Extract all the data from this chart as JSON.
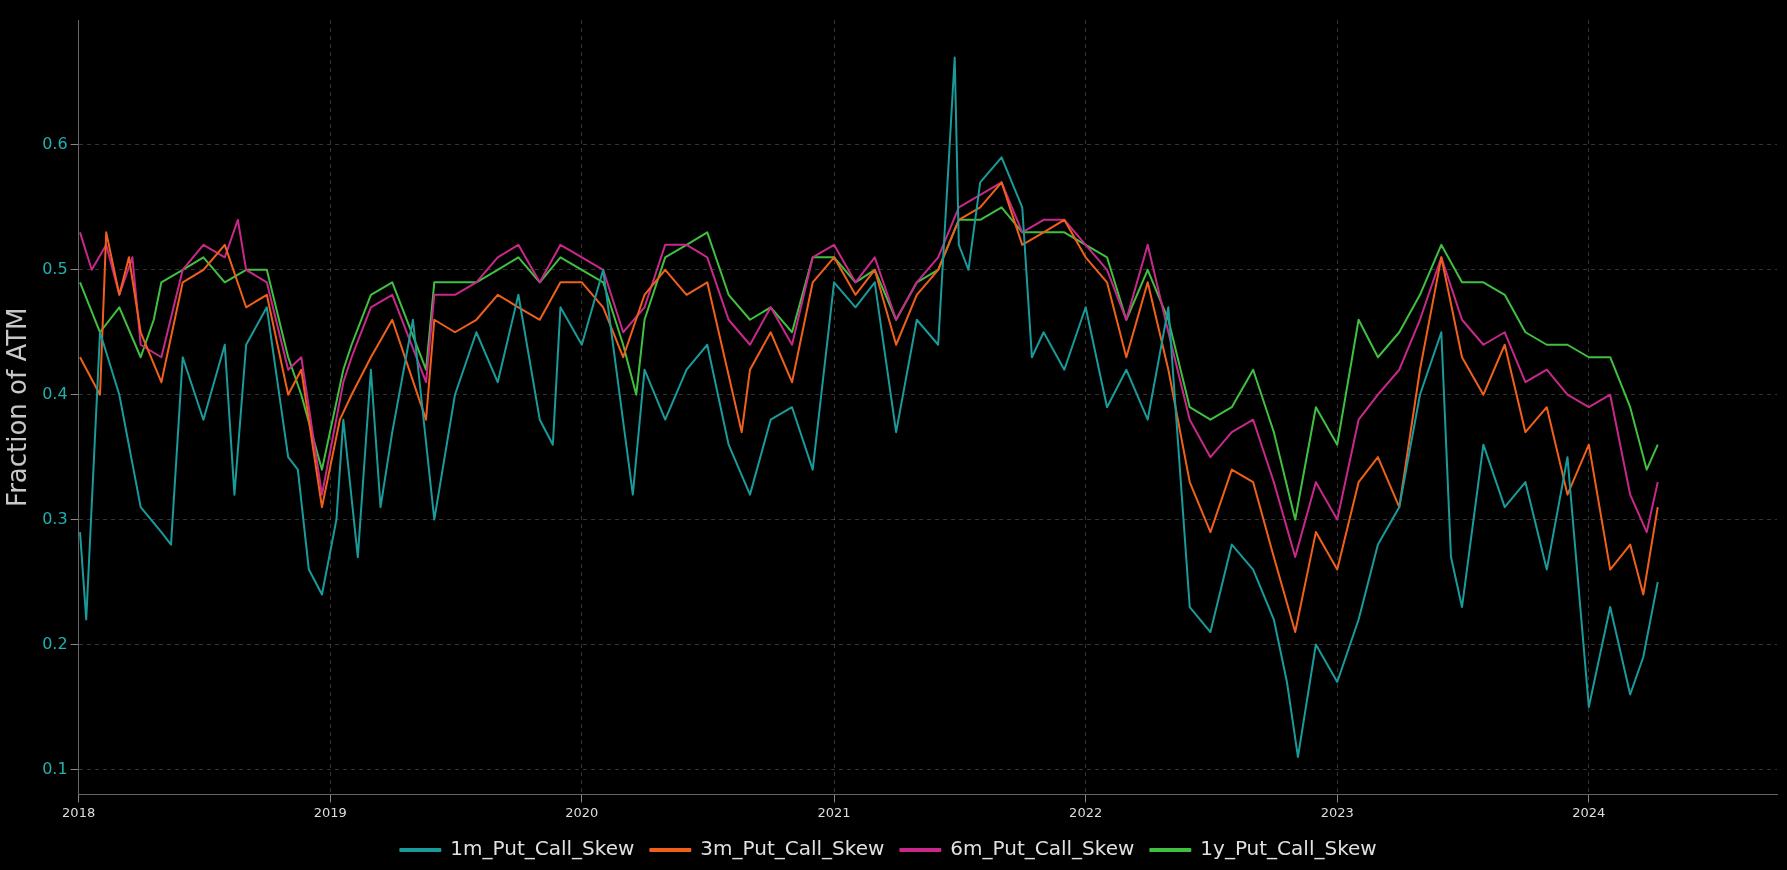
{
  "chart_data": {
    "type": "line",
    "ylabel": "Fraction of ATM",
    "xlim": [
      "2018-01-01",
      "2024-09-30"
    ],
    "xticks": [
      "2018",
      "2019",
      "2020",
      "2021",
      "2022",
      "2023",
      "2024"
    ],
    "ylim": [
      0.08,
      0.7
    ],
    "yticks": [
      0.1,
      0.2,
      0.3,
      0.4,
      0.5,
      0.6
    ],
    "grid": true,
    "legend": "bottom",
    "marker": "none",
    "line_style": "solid",
    "series": [
      {
        "name": "1m_Put_Call_Skew",
        "color": "#1a9a9a",
        "x": [
          "2018-01-03",
          "2018-01-12",
          "2018-02-01",
          "2018-03-01",
          "2018-04-01",
          "2018-05-01",
          "2018-05-15",
          "2018-06-01",
          "2018-07-01",
          "2018-08-01",
          "2018-08-15",
          "2018-09-01",
          "2018-10-01",
          "2018-11-01",
          "2018-11-15",
          "2018-12-01",
          "2018-12-20",
          "2019-01-10",
          "2019-01-20",
          "2019-02-10",
          "2019-03-01",
          "2019-03-15",
          "2019-04-01",
          "2019-05-01",
          "2019-06-01",
          "2019-07-01",
          "2019-08-01",
          "2019-09-01",
          "2019-10-01",
          "2019-11-01",
          "2019-11-20",
          "2019-12-01",
          "2020-01-01",
          "2020-02-01",
          "2020-03-15",
          "2020-04-01",
          "2020-05-01",
          "2020-06-01",
          "2020-07-01",
          "2020-08-01",
          "2020-09-01",
          "2020-10-01",
          "2020-11-01",
          "2020-12-01",
          "2021-01-01",
          "2021-02-01",
          "2021-03-01",
          "2021-04-01",
          "2021-05-01",
          "2021-06-01",
          "2021-06-25",
          "2021-07-01",
          "2021-07-15",
          "2021-08-01",
          "2021-09-01",
          "2021-10-01",
          "2021-10-15",
          "2021-11-01",
          "2021-12-01",
          "2022-01-01",
          "2022-02-01",
          "2022-03-01",
          "2022-04-01",
          "2022-05-01",
          "2022-06-01",
          "2022-07-01",
          "2022-08-01",
          "2022-09-01",
          "2022-10-01",
          "2022-10-20",
          "2022-11-05",
          "2022-12-01",
          "2023-01-01",
          "2023-02-01",
          "2023-03-01",
          "2023-04-01",
          "2023-05-01",
          "2023-06-01",
          "2023-06-15",
          "2023-07-01",
          "2023-08-01",
          "2023-09-01",
          "2023-10-01",
          "2023-11-01",
          "2023-12-01",
          "2024-01-01",
          "2024-02-01",
          "2024-03-01",
          "2024-03-20",
          "2024-04-10"
        ],
        "values": [
          0.29,
          0.22,
          0.45,
          0.4,
          0.31,
          0.29,
          0.28,
          0.43,
          0.38,
          0.44,
          0.32,
          0.44,
          0.47,
          0.35,
          0.34,
          0.26,
          0.24,
          0.3,
          0.38,
          0.27,
          0.42,
          0.31,
          0.37,
          0.46,
          0.3,
          0.4,
          0.45,
          0.41,
          0.48,
          0.38,
          0.36,
          0.47,
          0.44,
          0.5,
          0.32,
          0.42,
          0.38,
          0.42,
          0.44,
          0.36,
          0.32,
          0.38,
          0.39,
          0.34,
          0.49,
          0.47,
          0.49,
          0.37,
          0.46,
          0.44,
          0.67,
          0.52,
          0.5,
          0.57,
          0.59,
          0.55,
          0.43,
          0.45,
          0.42,
          0.47,
          0.39,
          0.42,
          0.38,
          0.47,
          0.23,
          0.21,
          0.28,
          0.26,
          0.22,
          0.17,
          0.11,
          0.2,
          0.17,
          0.22,
          0.28,
          0.31,
          0.4,
          0.45,
          0.27,
          0.23,
          0.36,
          0.31,
          0.33,
          0.26,
          0.35,
          0.15,
          0.23,
          0.16,
          0.19,
          0.25
        ]
      },
      {
        "name": "3m_Put_Call_Skew",
        "color": "#f0601a",
        "x": [
          "2018-01-03",
          "2018-02-01",
          "2018-02-10",
          "2018-03-01",
          "2018-03-15",
          "2018-04-01",
          "2018-05-01",
          "2018-06-01",
          "2018-07-01",
          "2018-08-01",
          "2018-09-01",
          "2018-10-01",
          "2018-11-01",
          "2018-11-20",
          "2018-12-20",
          "2019-01-15",
          "2019-02-01",
          "2019-03-01",
          "2019-04-01",
          "2019-05-20",
          "2019-06-01",
          "2019-07-01",
          "2019-08-01",
          "2019-09-01",
          "2019-10-01",
          "2019-11-01",
          "2019-12-01",
          "2020-01-01",
          "2020-02-01",
          "2020-03-01",
          "2020-04-01",
          "2020-05-01",
          "2020-06-01",
          "2020-07-01",
          "2020-08-20",
          "2020-09-01",
          "2020-10-01",
          "2020-11-01",
          "2020-12-01",
          "2021-01-01",
          "2021-02-01",
          "2021-03-01",
          "2021-04-01",
          "2021-05-01",
          "2021-06-01",
          "2021-07-01",
          "2021-08-01",
          "2021-09-01",
          "2021-10-01",
          "2021-11-01",
          "2021-12-01",
          "2022-01-01",
          "2022-02-01",
          "2022-03-01",
          "2022-04-01",
          "2022-05-01",
          "2022-06-01",
          "2022-07-01",
          "2022-08-01",
          "2022-09-01",
          "2022-10-01",
          "2022-11-01",
          "2022-12-01",
          "2023-01-01",
          "2023-02-01",
          "2023-03-01",
          "2023-04-01",
          "2023-05-01",
          "2023-06-01",
          "2023-07-01",
          "2023-08-01",
          "2023-09-01",
          "2023-10-01",
          "2023-11-01",
          "2023-12-01",
          "2024-01-01",
          "2024-02-01",
          "2024-03-01",
          "2024-03-20",
          "2024-04-10"
        ],
        "values": [
          0.43,
          0.4,
          0.53,
          0.48,
          0.51,
          0.45,
          0.41,
          0.49,
          0.5,
          0.52,
          0.47,
          0.48,
          0.4,
          0.42,
          0.31,
          0.38,
          0.4,
          0.43,
          0.46,
          0.38,
          0.46,
          0.45,
          0.46,
          0.48,
          0.47,
          0.46,
          0.49,
          0.49,
          0.47,
          0.43,
          0.48,
          0.5,
          0.48,
          0.49,
          0.37,
          0.42,
          0.45,
          0.41,
          0.49,
          0.51,
          0.48,
          0.5,
          0.44,
          0.48,
          0.5,
          0.54,
          0.55,
          0.57,
          0.52,
          0.53,
          0.54,
          0.51,
          0.49,
          0.43,
          0.49,
          0.42,
          0.33,
          0.29,
          0.34,
          0.33,
          0.27,
          0.21,
          0.29,
          0.26,
          0.33,
          0.35,
          0.31,
          0.42,
          0.51,
          0.43,
          0.4,
          0.44,
          0.37,
          0.39,
          0.32,
          0.36,
          0.26,
          0.28,
          0.24,
          0.31
        ]
      },
      {
        "name": "6m_Put_Call_Skew",
        "color": "#c8288a",
        "x": [
          "2018-01-03",
          "2018-01-20",
          "2018-02-10",
          "2018-03-01",
          "2018-03-20",
          "2018-04-01",
          "2018-05-01",
          "2018-06-01",
          "2018-07-01",
          "2018-08-01",
          "2018-08-20",
          "2018-09-01",
          "2018-10-01",
          "2018-11-01",
          "2018-11-20",
          "2018-12-20",
          "2019-01-20",
          "2019-02-01",
          "2019-03-01",
          "2019-04-01",
          "2019-05-20",
          "2019-06-01",
          "2019-07-01",
          "2019-08-01",
          "2019-09-01",
          "2019-10-01",
          "2019-11-01",
          "2019-12-01",
          "2020-01-01",
          "2020-02-01",
          "2020-03-01",
          "2020-04-01",
          "2020-05-01",
          "2020-06-01",
          "2020-07-01",
          "2020-08-01",
          "2020-09-01",
          "2020-10-01",
          "2020-11-01",
          "2020-12-01",
          "2021-01-01",
          "2021-02-01",
          "2021-03-01",
          "2021-04-01",
          "2021-05-01",
          "2021-06-01",
          "2021-07-01",
          "2021-08-01",
          "2021-09-01",
          "2021-10-01",
          "2021-11-01",
          "2021-12-01",
          "2022-01-01",
          "2022-02-01",
          "2022-03-01",
          "2022-04-01",
          "2022-05-01",
          "2022-06-01",
          "2022-07-01",
          "2022-08-01",
          "2022-09-01",
          "2022-10-01",
          "2022-11-01",
          "2022-12-01",
          "2023-01-01",
          "2023-02-01",
          "2023-03-01",
          "2023-04-01",
          "2023-05-01",
          "2023-06-01",
          "2023-07-01",
          "2023-08-01",
          "2023-09-01",
          "2023-10-01",
          "2023-11-01",
          "2023-12-01",
          "2024-01-01",
          "2024-02-01",
          "2024-03-01",
          "2024-03-25",
          "2024-04-10"
        ],
        "values": [
          0.53,
          0.5,
          0.52,
          0.48,
          0.51,
          0.44,
          0.43,
          0.5,
          0.52,
          0.51,
          0.54,
          0.5,
          0.49,
          0.42,
          0.43,
          0.32,
          0.41,
          0.43,
          0.47,
          0.48,
          0.41,
          0.48,
          0.48,
          0.49,
          0.51,
          0.52,
          0.49,
          0.52,
          0.51,
          0.5,
          0.45,
          0.47,
          0.52,
          0.52,
          0.51,
          0.46,
          0.44,
          0.47,
          0.44,
          0.51,
          0.52,
          0.49,
          0.51,
          0.46,
          0.49,
          0.51,
          0.55,
          0.56,
          0.57,
          0.53,
          0.54,
          0.54,
          0.52,
          0.5,
          0.46,
          0.52,
          0.45,
          0.38,
          0.35,
          0.37,
          0.38,
          0.33,
          0.27,
          0.33,
          0.3,
          0.38,
          0.4,
          0.42,
          0.46,
          0.51,
          0.46,
          0.44,
          0.45,
          0.41,
          0.42,
          0.4,
          0.39,
          0.4,
          0.32,
          0.29,
          0.33
        ]
      },
      {
        "name": "1y_Put_Call_Skew",
        "color": "#40c040",
        "x": [
          "2018-01-03",
          "2018-02-01",
          "2018-03-01",
          "2018-04-01",
          "2018-04-20",
          "2018-05-01",
          "2018-06-01",
          "2018-07-01",
          "2018-08-01",
          "2018-09-01",
          "2018-10-01",
          "2018-11-01",
          "2018-11-20",
          "2018-12-20",
          "2019-01-20",
          "2019-02-01",
          "2019-03-01",
          "2019-04-01",
          "2019-05-20",
          "2019-06-01",
          "2019-07-01",
          "2019-08-01",
          "2019-09-01",
          "2019-10-01",
          "2019-11-01",
          "2019-12-01",
          "2020-01-01",
          "2020-02-01",
          "2020-03-01",
          "2020-03-20",
          "2020-04-01",
          "2020-05-01",
          "2020-06-01",
          "2020-07-01",
          "2020-08-01",
          "2020-09-01",
          "2020-10-01",
          "2020-11-01",
          "2020-12-01",
          "2021-01-01",
          "2021-02-01",
          "2021-03-01",
          "2021-04-01",
          "2021-05-01",
          "2021-06-01",
          "2021-07-01",
          "2021-08-01",
          "2021-09-01",
          "2021-10-01",
          "2021-11-01",
          "2021-12-01",
          "2022-01-01",
          "2022-02-01",
          "2022-03-01",
          "2022-04-01",
          "2022-05-01",
          "2022-06-01",
          "2022-07-01",
          "2022-08-01",
          "2022-09-01",
          "2022-10-01",
          "2022-11-01",
          "2022-12-01",
          "2023-01-01",
          "2023-02-01",
          "2023-03-01",
          "2023-04-01",
          "2023-05-01",
          "2023-06-01",
          "2023-07-01",
          "2023-08-01",
          "2023-09-01",
          "2023-10-01",
          "2023-11-01",
          "2023-12-01",
          "2024-01-01",
          "2024-02-01",
          "2024-03-01",
          "2024-03-25",
          "2024-04-10"
        ],
        "values": [
          0.49,
          0.45,
          0.47,
          0.43,
          0.46,
          0.49,
          0.5,
          0.51,
          0.49,
          0.5,
          0.5,
          0.43,
          0.4,
          0.34,
          0.42,
          0.44,
          0.48,
          0.49,
          0.42,
          0.49,
          0.49,
          0.49,
          0.5,
          0.51,
          0.49,
          0.51,
          0.5,
          0.49,
          0.44,
          0.4,
          0.46,
          0.51,
          0.52,
          0.53,
          0.48,
          0.46,
          0.47,
          0.45,
          0.51,
          0.51,
          0.49,
          0.5,
          0.46,
          0.49,
          0.5,
          0.54,
          0.54,
          0.55,
          0.53,
          0.53,
          0.53,
          0.52,
          0.51,
          0.46,
          0.5,
          0.46,
          0.39,
          0.38,
          0.39,
          0.42,
          0.37,
          0.3,
          0.39,
          0.36,
          0.46,
          0.43,
          0.45,
          0.48,
          0.52,
          0.49,
          0.49,
          0.48,
          0.45,
          0.44,
          0.44,
          0.43,
          0.43,
          0.39,
          0.34,
          0.36
        ]
      }
    ]
  }
}
